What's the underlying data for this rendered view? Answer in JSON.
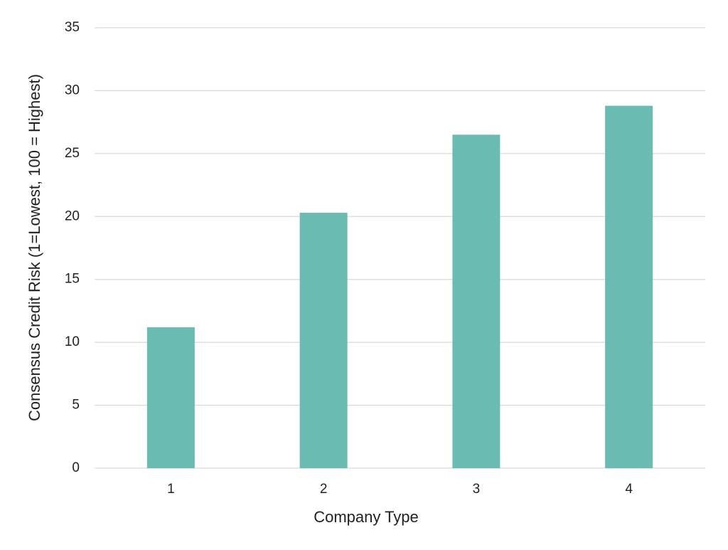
{
  "chart_data": {
    "type": "bar",
    "x_label": "Company Type",
    "y_label": "Consensus Credit Risk (1=Lowest, 100 = Highest)",
    "categories": [
      "1",
      "2",
      "3",
      "4"
    ],
    "values": [
      11.2,
      20.3,
      26.5,
      28.8
    ],
    "color": "#6abbb1",
    "ylim": [
      0,
      35
    ],
    "yticks": [
      0,
      5,
      10,
      15,
      20,
      25,
      30,
      35
    ],
    "grid": true
  }
}
